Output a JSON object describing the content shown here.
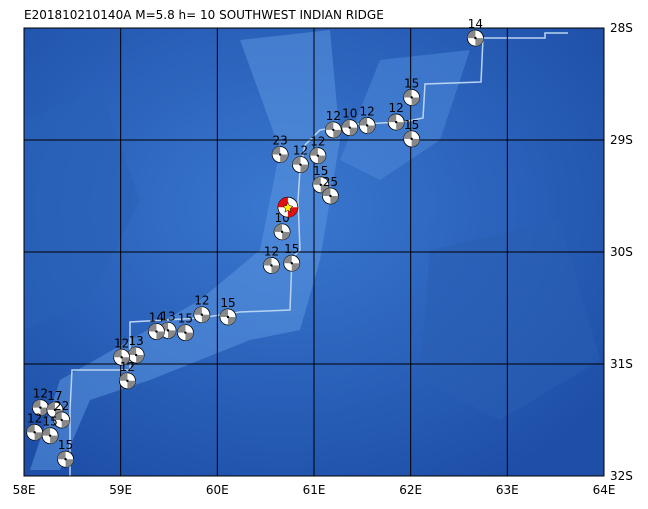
{
  "map": {
    "title": "E201810210140A M=5.8 h= 10 SOUTHWEST INDIAN RIDGE",
    "xlim": [
      58,
      64
    ],
    "ylim": [
      -32,
      -28
    ],
    "xticks": [
      {
        "value": 58,
        "label": "58E"
      },
      {
        "value": 59,
        "label": "59E"
      },
      {
        "value": 60,
        "label": "60E"
      },
      {
        "value": 61,
        "label": "61E"
      },
      {
        "value": 62,
        "label": "62E"
      },
      {
        "value": 63,
        "label": "63E"
      },
      {
        "value": 64,
        "label": "64E"
      }
    ],
    "yticks": [
      {
        "value": -28,
        "label": "28S"
      },
      {
        "value": -29,
        "label": "29S"
      },
      {
        "value": -30,
        "label": "30S"
      },
      {
        "value": -31,
        "label": "31S"
      },
      {
        "value": -32,
        "label": "32S"
      }
    ],
    "main_event": {
      "lon": 60.73,
      "lat": -29.6
    },
    "events": [
      {
        "lon": 62.67,
        "lat": -28.09,
        "depth": 14
      },
      {
        "lon": 62.01,
        "lat": -28.62,
        "depth": 15
      },
      {
        "lon": 61.85,
        "lat": -28.84,
        "depth": 12
      },
      {
        "lon": 62.01,
        "lat": -28.99,
        "depth": 15
      },
      {
        "lon": 61.55,
        "lat": -28.87,
        "depth": 12
      },
      {
        "lon": 61.37,
        "lat": -28.89,
        "depth": 10
      },
      {
        "lon": 61.2,
        "lat": -28.91,
        "depth": 12
      },
      {
        "lon": 61.04,
        "lat": -29.14,
        "depth": 12
      },
      {
        "lon": 60.65,
        "lat": -29.13,
        "depth": 23
      },
      {
        "lon": 60.86,
        "lat": -29.22,
        "depth": 12
      },
      {
        "lon": 61.07,
        "lat": -29.4,
        "depth": 15
      },
      {
        "lon": 61.17,
        "lat": -29.5,
        "depth": 25
      },
      {
        "lon": 60.67,
        "lat": -29.82,
        "depth": 10
      },
      {
        "lon": 60.56,
        "lat": -30.12,
        "depth": 12
      },
      {
        "lon": 60.77,
        "lat": -30.1,
        "depth": 15
      },
      {
        "lon": 60.11,
        "lat": -30.58,
        "depth": 15
      },
      {
        "lon": 59.84,
        "lat": -30.56,
        "depth": 12
      },
      {
        "lon": 59.67,
        "lat": -30.72,
        "depth": 15
      },
      {
        "lon": 59.49,
        "lat": -30.7,
        "depth": 13
      },
      {
        "lon": 59.37,
        "lat": -30.71,
        "depth": 14
      },
      {
        "lon": 59.16,
        "lat": -30.92,
        "depth": 13
      },
      {
        "lon": 59.01,
        "lat": -30.94,
        "depth": 12
      },
      {
        "lon": 59.07,
        "lat": -31.15,
        "depth": 12
      },
      {
        "lon": 58.17,
        "lat": -31.39,
        "depth": 12
      },
      {
        "lon": 58.32,
        "lat": -31.41,
        "depth": 17
      },
      {
        "lon": 58.39,
        "lat": -31.5,
        "depth": 22
      },
      {
        "lon": 58.11,
        "lat": -31.61,
        "depth": 12
      },
      {
        "lon": 58.27,
        "lat": -31.64,
        "depth": 15
      },
      {
        "lon": 58.43,
        "lat": -31.85,
        "depth": 15
      }
    ]
  }
}
